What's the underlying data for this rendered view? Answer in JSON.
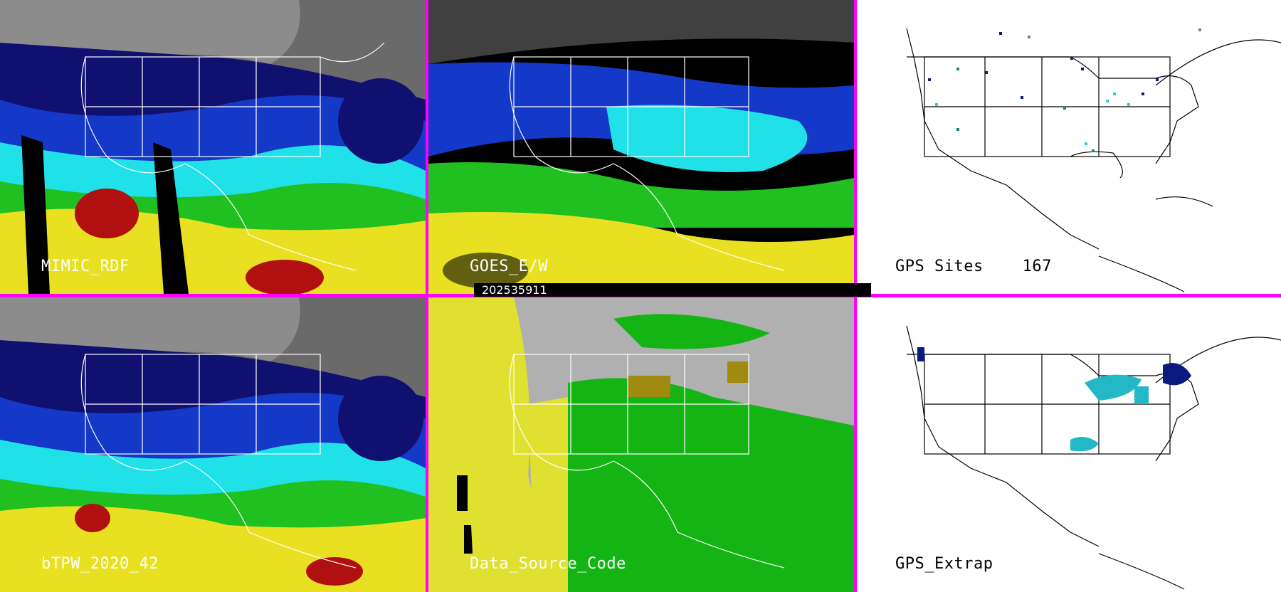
{
  "panels": [
    {
      "label": "MIMIC_RDF",
      "style": "mimic"
    },
    {
      "label": "GOES_E/W",
      "style": "goes"
    },
    {
      "label": "GPS Sites    167",
      "style": "gps"
    },
    {
      "label": "bTPW_2020_42",
      "style": "mimic"
    },
    {
      "label": "Data_Source_Code",
      "style": "source"
    },
    {
      "label": "GPS_Extrap",
      "style": "extrap"
    }
  ],
  "timestamp": "202535911",
  "colors": {
    "divider": "#ff00ff",
    "pw_dry": "#101060",
    "pw_blue": "#1438c8",
    "pw_cyan": "#20e0e8",
    "pw_green": "#20c020",
    "pw_yellow": "#e8e020",
    "pw_red": "#b01010",
    "source_gray": "#b0b0b0",
    "source_yellow": "#e0e030",
    "source_green": "#14b414",
    "source_olive": "#a08a10"
  }
}
